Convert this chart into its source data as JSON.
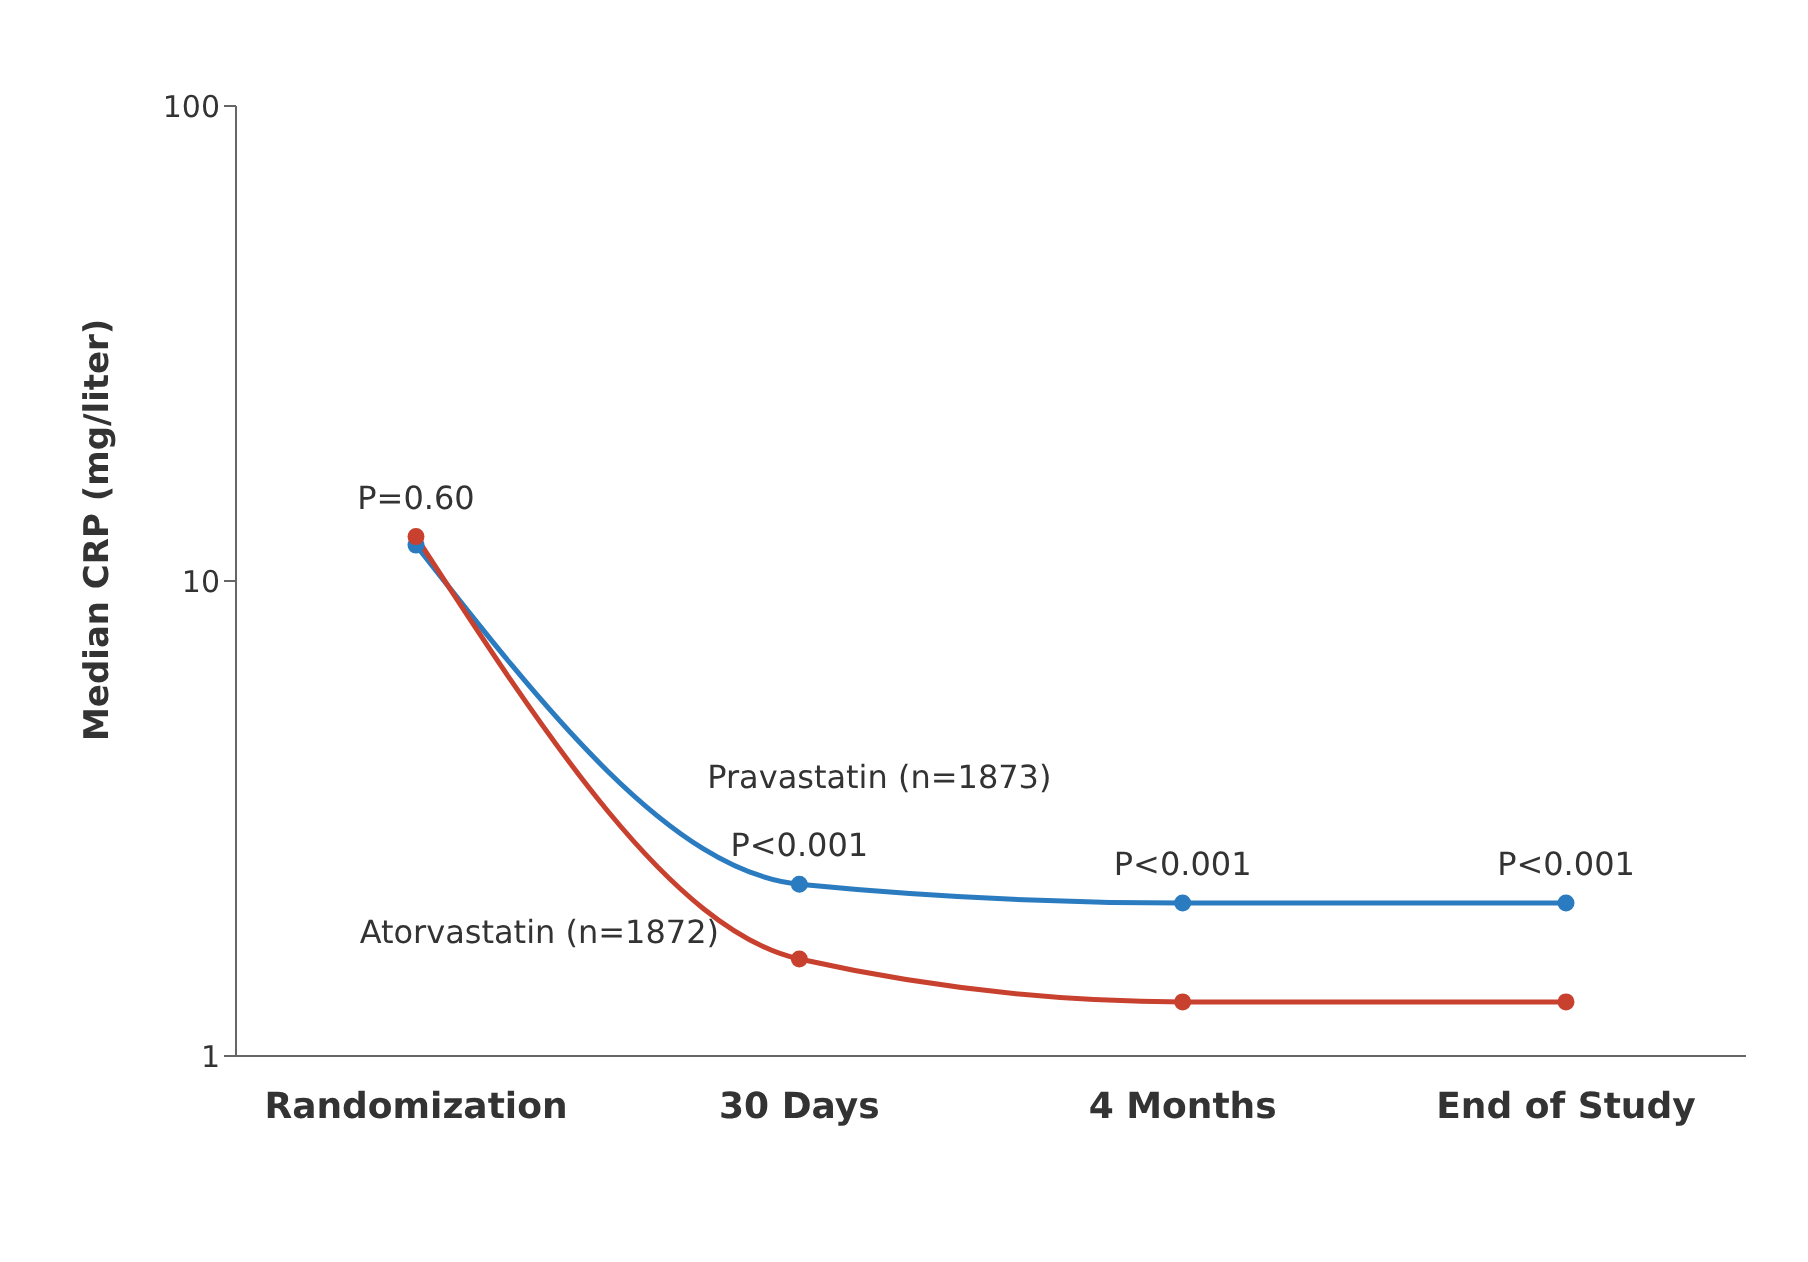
{
  "chart_data": {
    "type": "line",
    "ylabel": "Median CRP (mg/liter)",
    "categories": [
      "Randomization",
      "30 Days",
      "4 Months",
      "End of Study"
    ],
    "series": [
      {
        "name": "Pravastatin (n=1873)",
        "color": "#2a7bbf",
        "values": [
          11.9,
          2.3,
          2.1,
          2.1
        ]
      },
      {
        "name": "Atorvastatin (n=1872)",
        "color": "#c8412f",
        "values": [
          12.4,
          1.6,
          1.3,
          1.3
        ]
      }
    ],
    "log": "y",
    "ylim": [
      1,
      100
    ],
    "yticks": [
      1,
      10,
      100
    ],
    "grid": false,
    "legend": false,
    "marker": "circle",
    "line_style": "solid",
    "annotations": [
      {
        "text": "P=0.60",
        "x": "Randomization",
        "y": 12.4
      },
      {
        "text": "P<0.001",
        "x": "30 Days",
        "y": 2.3
      },
      {
        "text": "P<0.001",
        "x": "4 Months",
        "y": 2.1
      },
      {
        "text": "P<0.001",
        "x": "End of Study",
        "y": 2.1
      }
    ]
  }
}
